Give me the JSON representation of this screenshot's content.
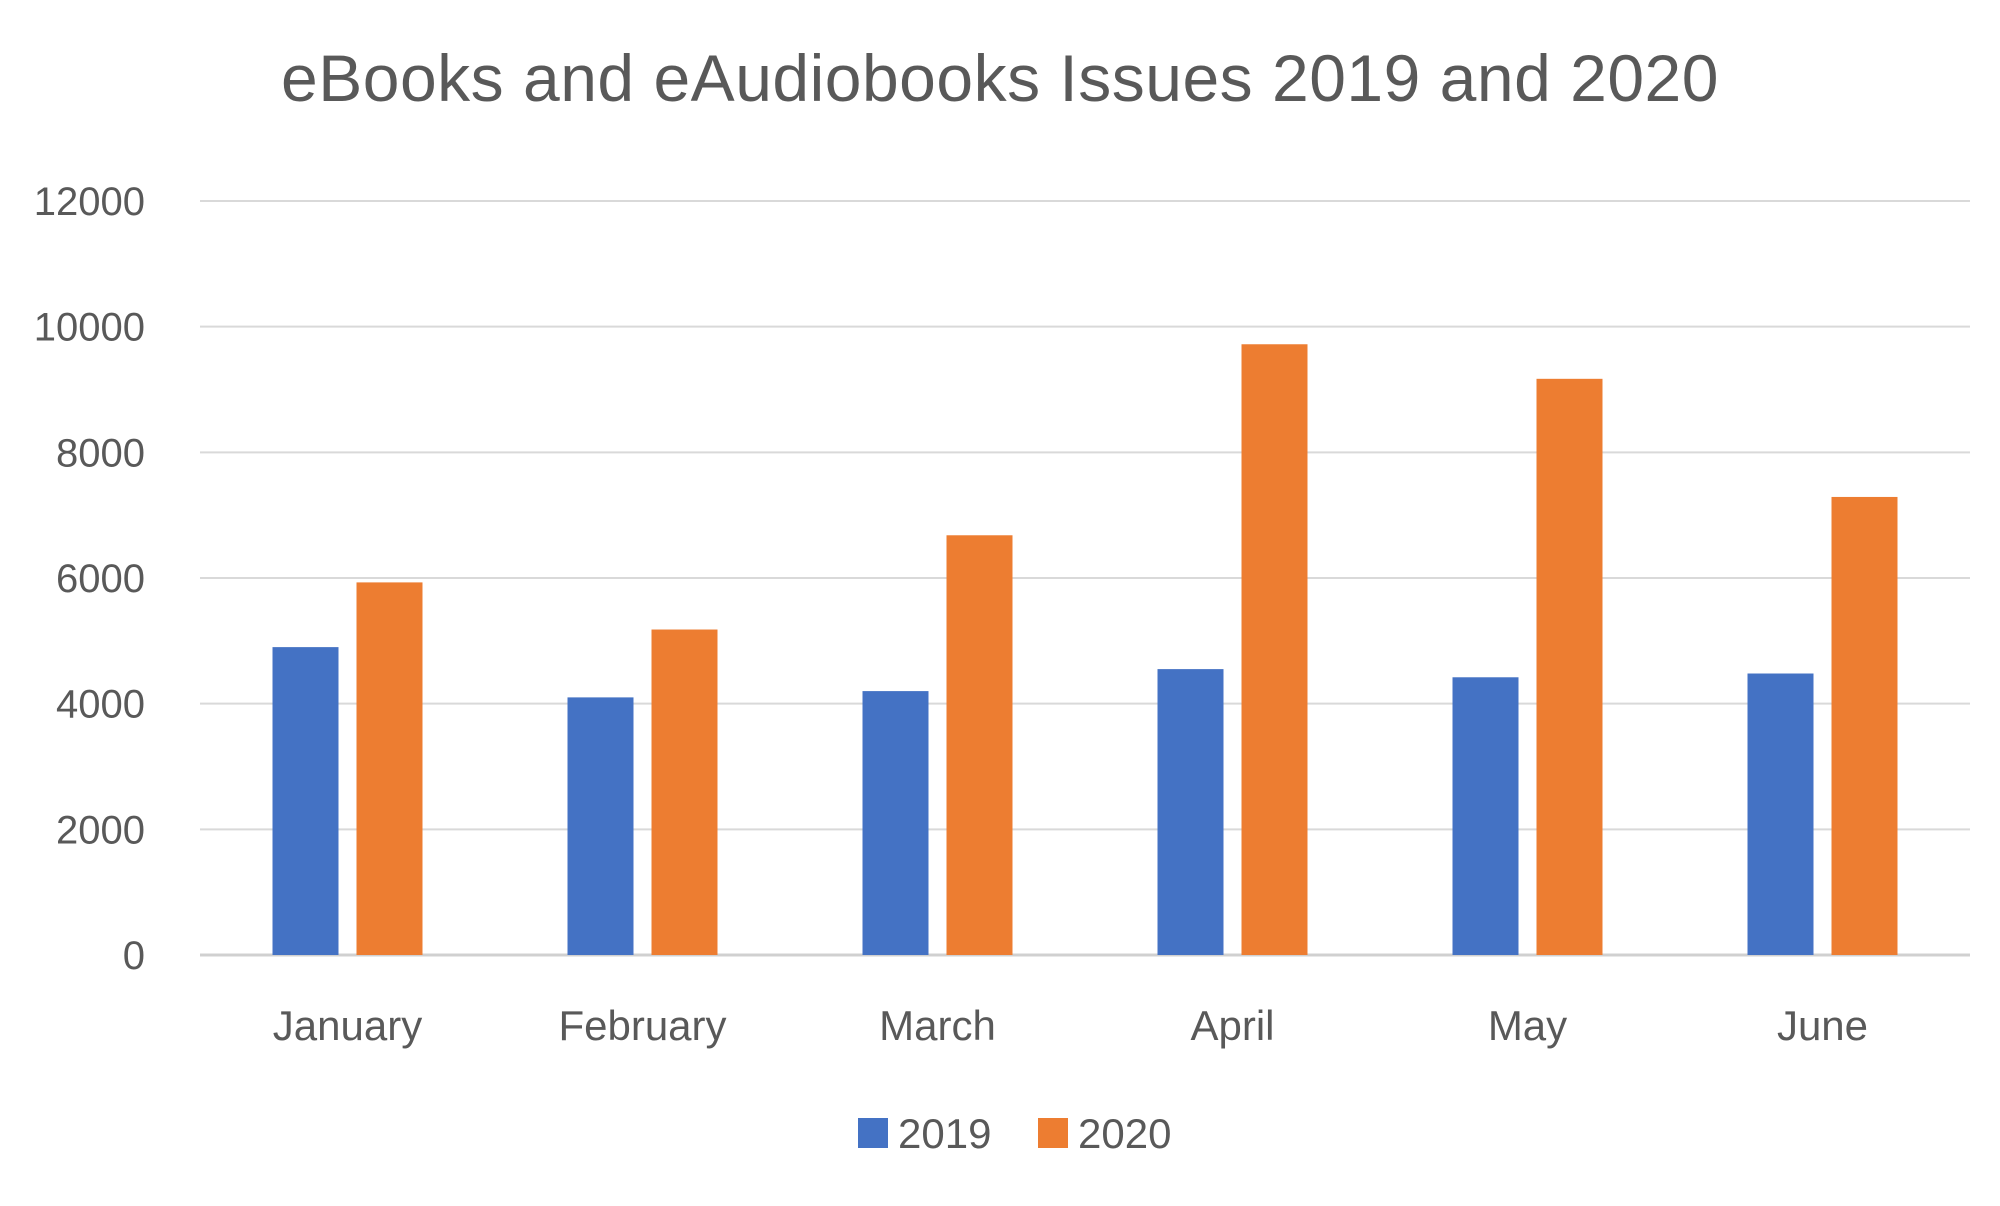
{
  "chart_data": {
    "type": "bar",
    "title": "eBooks and eAudiobooks Issues 2019 and 2020",
    "xlabel": "",
    "ylabel": "",
    "categories": [
      "January",
      "February",
      "March",
      "April",
      "May",
      "June"
    ],
    "series": [
      {
        "name": "2019",
        "color": "#4472C4",
        "values": [
          4900,
          4100,
          4200,
          4550,
          4420,
          4480
        ]
      },
      {
        "name": "2020",
        "color": "#ED7D31",
        "values": [
          5930,
          5180,
          6680,
          9720,
          9170,
          7290
        ]
      }
    ],
    "ylim": [
      0,
      12000
    ],
    "yticks": [
      0,
      2000,
      4000,
      6000,
      8000,
      10000,
      12000
    ],
    "grid": true,
    "legend_position": "bottom"
  }
}
